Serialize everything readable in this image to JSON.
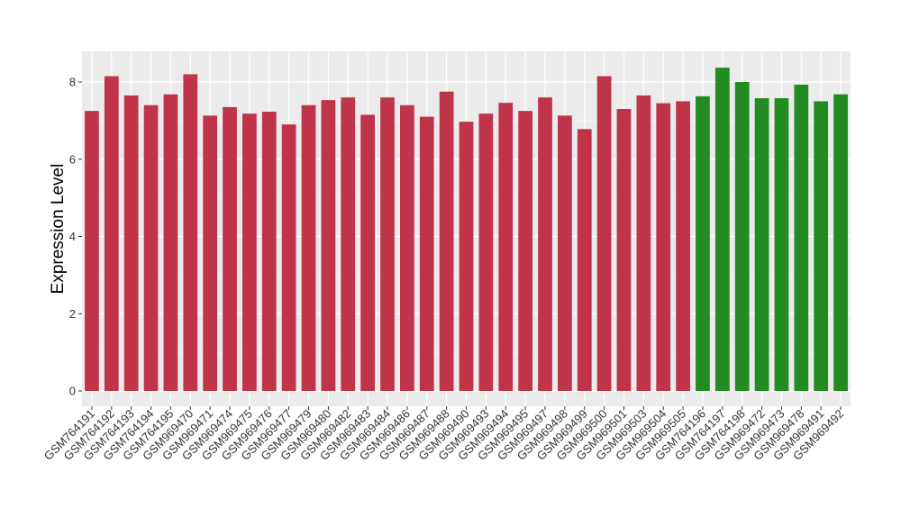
{
  "chart_data": {
    "type": "bar",
    "title": "",
    "xlabel": "",
    "ylabel": "Expression Level",
    "ylim": [
      0,
      8.8
    ],
    "yticks": [
      0,
      2,
      4,
      6,
      8
    ],
    "grid": true,
    "categories": [
      "GSM764191",
      "GSM764192",
      "GSM764193",
      "GSM764194",
      "GSM764195",
      "GSM969470",
      "GSM969471",
      "GSM969474",
      "GSM969475",
      "GSM969476",
      "GSM969477",
      "GSM969479",
      "GSM969480",
      "GSM969482",
      "GSM969483",
      "GSM969484",
      "GSM969486",
      "GSM969487",
      "GSM969488",
      "GSM969490",
      "GSM969493",
      "GSM969494",
      "GSM969495",
      "GSM969497",
      "GSM969498",
      "GSM969499",
      "GSM969500",
      "GSM969501",
      "GSM969503",
      "GSM969504",
      "GSM969505",
      "GSM764196",
      "GSM764197",
      "GSM764198",
      "GSM969472",
      "GSM969473",
      "GSM969478",
      "GSM969491",
      "GSM969492"
    ],
    "values": [
      7.25,
      8.15,
      7.65,
      7.4,
      7.68,
      8.2,
      7.13,
      7.35,
      7.18,
      7.23,
      6.9,
      7.4,
      7.53,
      7.6,
      7.15,
      7.6,
      7.4,
      7.1,
      7.75,
      6.97,
      7.18,
      7.46,
      7.25,
      7.6,
      7.13,
      6.78,
      8.15,
      7.3,
      7.65,
      7.45,
      7.5,
      7.63,
      8.37,
      8.0,
      7.58,
      7.58,
      7.93,
      7.5,
      7.68
    ],
    "bar_colors": [
      "#c0344a",
      "#c0344a",
      "#c0344a",
      "#c0344a",
      "#c0344a",
      "#c0344a",
      "#c0344a",
      "#c0344a",
      "#c0344a",
      "#c0344a",
      "#c0344a",
      "#c0344a",
      "#c0344a",
      "#c0344a",
      "#c0344a",
      "#c0344a",
      "#c0344a",
      "#c0344a",
      "#c0344a",
      "#c0344a",
      "#c0344a",
      "#c0344a",
      "#c0344a",
      "#c0344a",
      "#c0344a",
      "#c0344a",
      "#c0344a",
      "#c0344a",
      "#c0344a",
      "#c0344a",
      "#c0344a",
      "#228b22",
      "#228b22",
      "#228b22",
      "#228b22",
      "#228b22",
      "#228b22",
      "#228b22",
      "#228b22"
    ],
    "panel_color": "#ebebeb",
    "gridline_color": "#ffffff"
  }
}
